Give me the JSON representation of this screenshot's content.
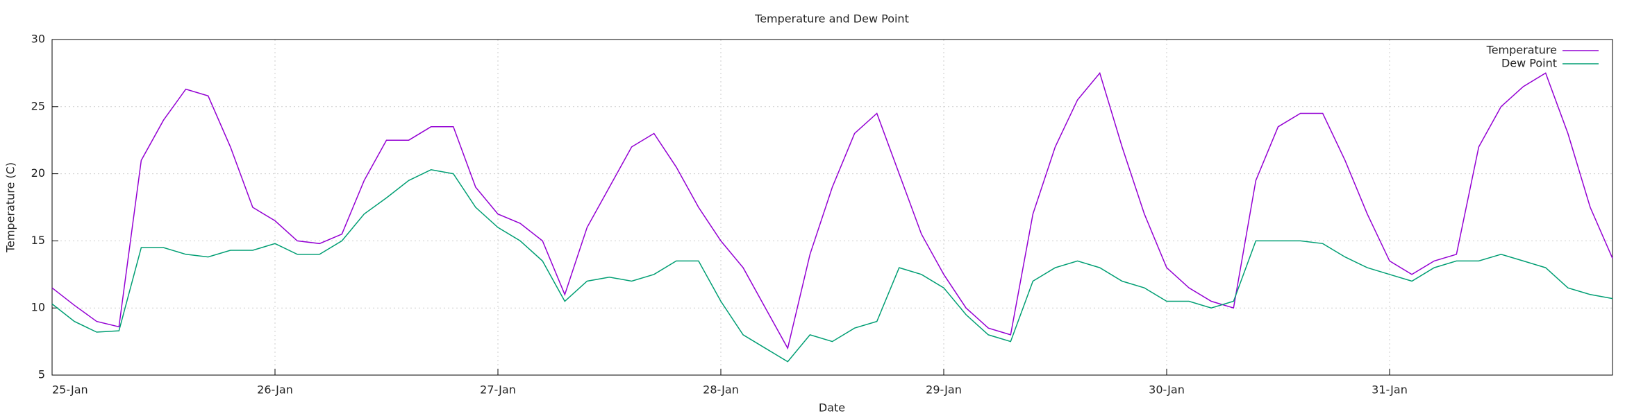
{
  "chart_data": {
    "type": "line",
    "title": "Temperature and Dew Point",
    "xlabel": "Date",
    "ylabel": "Temperature (C)",
    "x": [
      0,
      0.1,
      0.2,
      0.3,
      0.4,
      0.5,
      0.6,
      0.7,
      0.8,
      0.9,
      1,
      1.1,
      1.2,
      1.3,
      1.4,
      1.5,
      1.6,
      1.7,
      1.8,
      1.9,
      2,
      2.1,
      2.2,
      2.3,
      2.4,
      2.5,
      2.6,
      2.7,
      2.8,
      2.9,
      3,
      3.1,
      3.2,
      3.3,
      3.4,
      3.5,
      3.6,
      3.7,
      3.8,
      3.9,
      4,
      4.1,
      4.2,
      4.3,
      4.4,
      4.5,
      4.6,
      4.7,
      4.8,
      4.9,
      5,
      5.1,
      5.2,
      5.3,
      5.4,
      5.5,
      5.6,
      5.7,
      5.8,
      5.9,
      6,
      6.1,
      6.2,
      6.3,
      6.4,
      6.5,
      6.6,
      6.7,
      6.8,
      6.9,
      7
    ],
    "series": [
      {
        "name": "Temperature",
        "color": "#9400d3",
        "values": [
          11.5,
          10.2,
          9,
          8.6,
          21,
          24,
          26.3,
          25.8,
          22,
          17.5,
          16.5,
          15,
          14.8,
          15.5,
          19.5,
          22.5,
          22.5,
          23.5,
          23.5,
          19,
          17,
          16.3,
          15,
          11,
          16,
          19,
          22,
          23,
          20.5,
          17.5,
          15,
          13,
          10,
          7,
          14,
          19,
          23,
          24.5,
          20,
          15.5,
          12.5,
          10,
          8.5,
          8,
          17,
          22,
          25.5,
          27.5,
          22,
          17,
          13,
          11.5,
          10.5,
          10,
          19.5,
          23.5,
          24.5,
          24.5,
          21,
          17,
          13.5,
          12.5,
          13.5,
          14,
          22,
          25,
          26.5,
          27.5,
          23,
          17.5,
          13.7
        ]
      },
      {
        "name": "Dew Point",
        "color": "#009e73",
        "values": [
          10.3,
          9,
          8.2,
          8.3,
          14.5,
          14.5,
          14,
          13.8,
          14.3,
          14.3,
          14.8,
          14,
          14,
          15,
          17,
          18.2,
          19.5,
          20.3,
          20,
          17.5,
          16,
          15,
          13.5,
          10.5,
          12,
          12.3,
          12,
          12.5,
          13.5,
          13.5,
          10.5,
          8,
          7,
          6,
          8,
          7.5,
          8.5,
          9,
          13,
          12.5,
          11.5,
          9.5,
          8,
          7.5,
          12,
          13,
          13.5,
          13,
          12,
          11.5,
          10.5,
          10.5,
          10,
          10.5,
          15,
          15,
          15,
          14.8,
          13.8,
          13,
          12.5,
          12,
          13,
          13.5,
          13.5,
          14,
          13.5,
          13,
          11.5,
          11,
          10.7
        ]
      }
    ],
    "xlim": [
      0,
      7
    ],
    "xticks": [
      {
        "value": 0,
        "label": "25-Jan"
      },
      {
        "value": 1,
        "label": "26-Jan"
      },
      {
        "value": 2,
        "label": "27-Jan"
      },
      {
        "value": 3,
        "label": "28-Jan"
      },
      {
        "value": 4,
        "label": "29-Jan"
      },
      {
        "value": 5,
        "label": "30-Jan"
      },
      {
        "value": 6,
        "label": "31-Jan"
      }
    ],
    "ylim": [
      5,
      30
    ],
    "yticks": [
      5,
      10,
      15,
      20,
      25,
      30
    ],
    "grid": true,
    "legend": "top-right"
  }
}
